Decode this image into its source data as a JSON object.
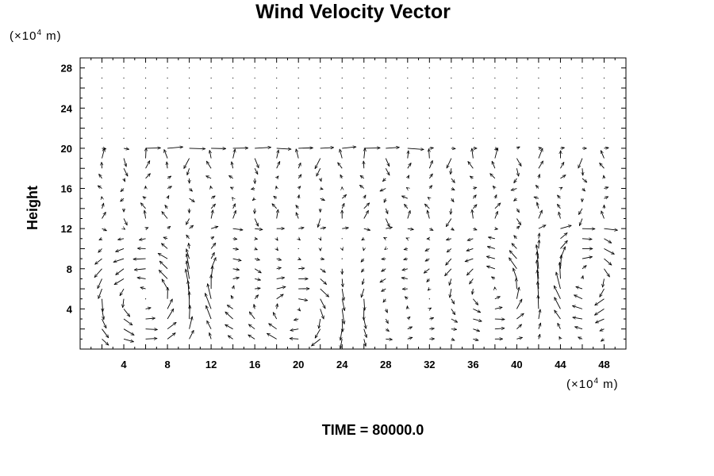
{
  "chart_data": {
    "type": "vector-field",
    "title": "Wind Velocity Vector",
    "xlabel": "",
    "ylabel": "Height",
    "x_unit": {
      "prefix": "(×10",
      "exp": "4",
      "suffix": " m)"
    },
    "y_unit": {
      "prefix": "(×10",
      "exp": "4",
      "suffix": " m)"
    },
    "xlim": [
      0,
      50
    ],
    "ylim": [
      0,
      29
    ],
    "x_ticks": [
      4,
      8,
      12,
      16,
      20,
      24,
      28,
      32,
      36,
      40,
      44,
      48
    ],
    "y_ticks": [
      4,
      8,
      12,
      16,
      20,
      24,
      28
    ],
    "grid_x": [
      0,
      2,
      4,
      6,
      8,
      10,
      12,
      14,
      16,
      18,
      20,
      22,
      24,
      26,
      28,
      30,
      32,
      34,
      36,
      38,
      40,
      42,
      44,
      46,
      48,
      50
    ],
    "grid_y": [
      0,
      1,
      2,
      3,
      4,
      5,
      6,
      7,
      8,
      9,
      10,
      11,
      12,
      13,
      14,
      15,
      16,
      17,
      18,
      19,
      20,
      21,
      22,
      23,
      24,
      25,
      26,
      27,
      28
    ],
    "jet_row": {
      "y": 20,
      "x_start": 6,
      "x_end": 30,
      "u": 1.7,
      "v": 0.0
    },
    "upper_stripes": {
      "y_from": 13,
      "y_to": 19,
      "stripe_width": 3,
      "v_amplitude": 1.2
    },
    "cells": [
      {
        "xc": 6,
        "yc": 5,
        "rx": 5,
        "ry": 4.5,
        "dir": 1,
        "speed": 1.8
      },
      {
        "xc": 13,
        "yc": 6,
        "rx": 3,
        "ry": 4,
        "dir": -1,
        "speed": 1.3
      },
      {
        "xc": 20,
        "yc": 3.5,
        "rx": 4.5,
        "ry": 3.5,
        "dir": -1,
        "speed": 1.6
      },
      {
        "xc": 28,
        "yc": 4,
        "rx": 4,
        "ry": 4,
        "dir": 1,
        "speed": 0.9
      },
      {
        "xc": 38,
        "yc": 6,
        "rx": 5,
        "ry": 4,
        "dir": 1,
        "speed": 1.5
      },
      {
        "xc": 46,
        "yc": 7,
        "rx": 4,
        "ry": 4,
        "dir": -1,
        "speed": 1.8
      }
    ]
  },
  "time_label": "TIME = 80000.0"
}
